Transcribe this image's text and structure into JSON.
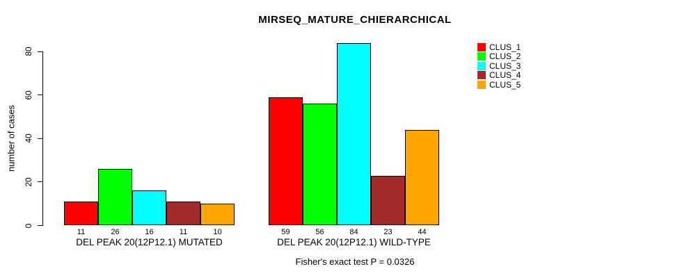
{
  "chart_data": {
    "type": "bar",
    "title": "MIRSEQ_MATURE_CHIERARCHICAL",
    "ylabel": "number of cases",
    "xlabel": "",
    "ylim": [
      0,
      85
    ],
    "yticks": [
      0,
      20,
      40,
      60,
      80
    ],
    "grid": false,
    "legend_position": "right",
    "bar_border_color": "#000000",
    "background_color": "#ffffff",
    "categories": [
      "DEL PEAK 20(12P12.1) MUTATED",
      "DEL PEAK 20(12P12.1) WILD-TYPE"
    ],
    "series": [
      {
        "name": "CLUS_1",
        "color": "#ff0000",
        "values": [
          11,
          59
        ]
      },
      {
        "name": "CLUS_2",
        "color": "#00ff00",
        "values": [
          26,
          56
        ]
      },
      {
        "name": "CLUS_3",
        "color": "#00ffff",
        "values": [
          16,
          84
        ]
      },
      {
        "name": "CLUS_4",
        "color": "#a52a2a",
        "values": [
          11,
          23
        ]
      },
      {
        "name": "CLUS_5",
        "color": "#ffa500",
        "values": [
          10,
          44
        ]
      }
    ],
    "value_labels": [
      [
        11,
        26,
        16,
        11,
        10
      ],
      [
        59,
        56,
        84,
        23,
        44
      ]
    ],
    "annotation": "Fisher's exact test P = 0.0326"
  }
}
